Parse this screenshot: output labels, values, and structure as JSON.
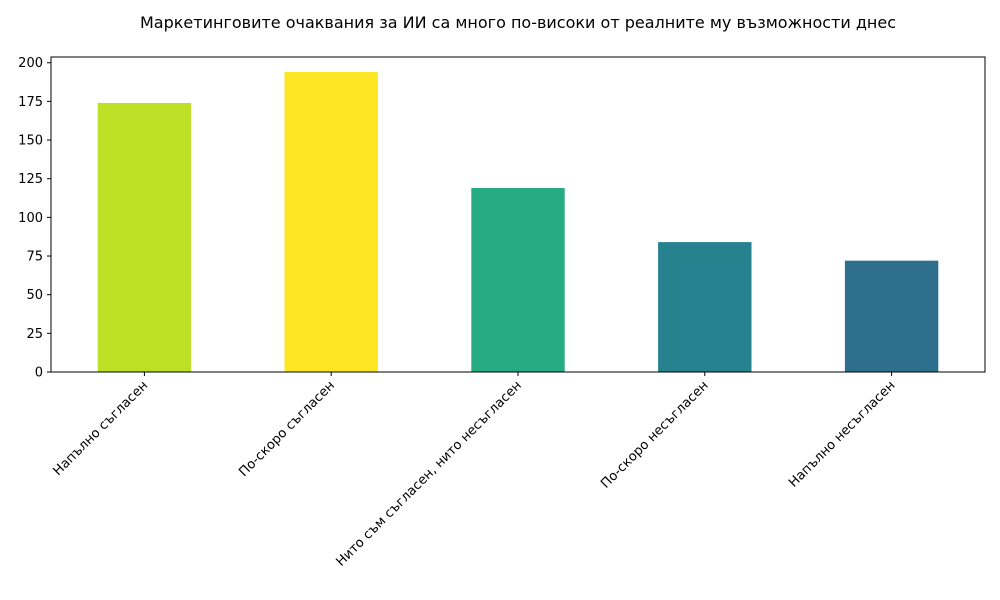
{
  "chart_data": {
    "type": "bar",
    "title": "Маркетинговите очаквания за ИИ са много по-високи от реалните му възможности днес",
    "categories": [
      "Напълно съгласен",
      "По-скоро съгласен",
      "Нито съм съгласен, нито несъгласен",
      "По-скоро несъгласен",
      "Напълно несъгласен"
    ],
    "values": [
      174,
      194,
      119,
      84,
      72
    ],
    "colors": [
      "#bddf26",
      "#fde725",
      "#25ac82",
      "#26828e",
      "#2e6f8e"
    ],
    "ylim": [
      0,
      203.7
    ],
    "yticks": [
      0,
      25,
      50,
      75,
      100,
      125,
      150,
      175,
      200
    ],
    "grid": false
  }
}
